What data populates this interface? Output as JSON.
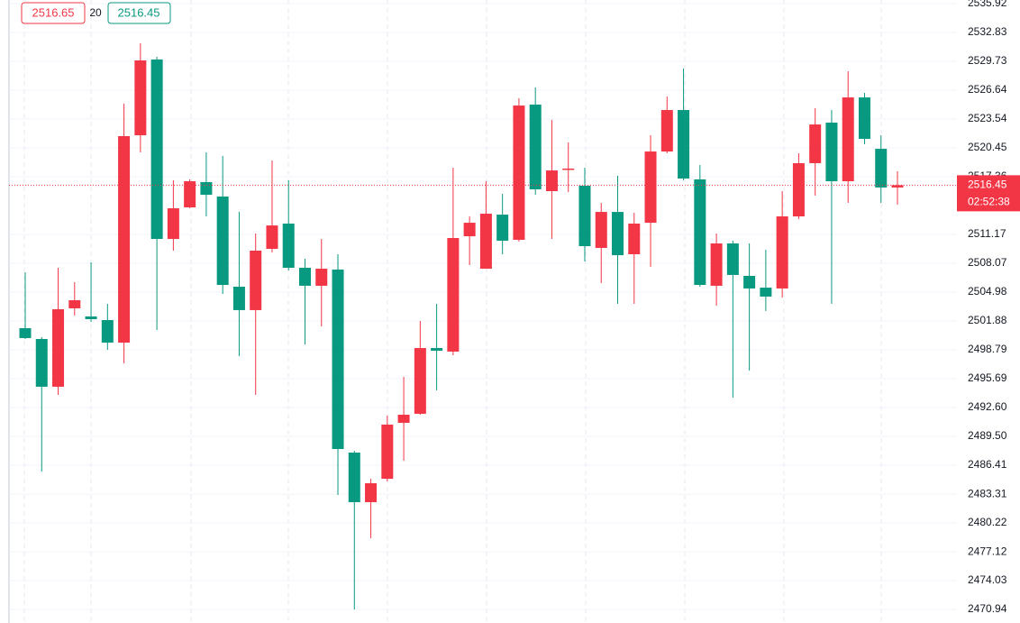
{
  "header": {
    "sell": 2516.65,
    "spread": 20,
    "buy": 2516.45
  },
  "chart_data": {
    "type": "candlestick",
    "up_color": "#f23645",
    "down_color": "#089981",
    "grid": true,
    "countdown": "02:52:38",
    "open": [
      2501.11,
      2499.95,
      2494.83,
      2503.24,
      2502.37,
      2501.98,
      2499.56,
      2521.8,
      2529.93,
      2510.68,
      2514.07,
      2516.78,
      2515.23,
      2505.56,
      2503.05,
      2509.62,
      2512.33,
      2507.59,
      2505.66,
      2507.4,
      2487.77,
      2482.45,
      2484.96,
      2490.96,
      2491.93,
      2498.98,
      2498.6,
      2510.97,
      2507.49,
      2513.29,
      2510.59,
      2525.09,
      2515.81,
      2518.13,
      2516.39,
      2509.72,
      2513.58,
      2509.04,
      2512.42,
      2520.06,
      2524.51,
      2517.07,
      2505.66,
      2510.2,
      2506.72,
      2505.46,
      2505.37,
      2513.1,
      2518.81,
      2523.16,
      2516.87,
      2525.86,
      2520.35,
      2516.2
    ],
    "high": [
      2507.11,
      2500.14,
      2507.59,
      2506.04,
      2508.17,
      2503.72,
      2525.19,
      2531.67,
      2530.22,
      2516.97,
      2517.07,
      2519.97,
      2519.58,
      2513.58,
      2511.26,
      2519.1,
      2516.97,
      2508.56,
      2510.68,
      2509.04,
      2487.96,
      2484.96,
      2491.73,
      2495.89,
      2501.88,
      2503.72,
      2518.32,
      2513.1,
      2516.87,
      2515.52,
      2525.77,
      2526.93,
      2523.45,
      2521.03,
      2518.32,
      2514.55,
      2517.45,
      2513.49,
      2521.8,
      2525.96,
      2528.96,
      2518.61,
      2511.26,
      2510.49,
      2510.2,
      2509.52,
      2515.81,
      2519.87,
      2524.7,
      2524.51,
      2528.67,
      2526.35,
      2521.8,
      2517.94
    ],
    "low": [
      2499.95,
      2485.74,
      2493.95,
      2502.46,
      2501.79,
      2498.79,
      2497.34,
      2519.97,
      2500.92,
      2509.43,
      2513.97,
      2513.1,
      2504.79,
      2498.11,
      2493.95,
      2509.23,
      2507.3,
      2499.37,
      2501.3,
      2483.22,
      2470.94,
      2478.58,
      2484.67,
      2486.9,
      2491.83,
      2494.44,
      2498.21,
      2507.88,
      2507.49,
      2509.04,
      2510.39,
      2515.42,
      2510.68,
      2515.71,
      2508.27,
      2505.95,
      2503.72,
      2503.72,
      2507.69,
      2519.87,
      2516.97,
      2505.56,
      2503.53,
      2493.67,
      2496.57,
      2502.95,
      2504.4,
      2512.81,
      2515.33,
      2503.72,
      2514.55,
      2520.84,
      2514.55,
      2514.36
    ],
    "close": [
      2500.05,
      2494.83,
      2503.14,
      2504.11,
      2502.08,
      2499.56,
      2521.71,
      2529.83,
      2510.68,
      2513.97,
      2516.87,
      2515.42,
      2505.75,
      2503.05,
      2509.43,
      2512.13,
      2507.59,
      2505.66,
      2507.49,
      2488.15,
      2482.45,
      2484.48,
      2490.77,
      2491.83,
      2498.98,
      2498.69,
      2510.78,
      2512.42,
      2513.39,
      2510.49,
      2524.99,
      2516.0,
      2518.03,
      2518.23,
      2509.91,
      2513.58,
      2508.94,
      2512.33,
      2520.06,
      2524.51,
      2517.16,
      2505.75,
      2510.2,
      2506.82,
      2505.37,
      2504.5,
      2513.1,
      2518.81,
      2522.96,
      2516.87,
      2525.86,
      2521.42,
      2516.2,
      2516.45
    ],
    "ylim": [
      2469.49,
      2536.31
    ],
    "yticks": [
      2470.94,
      2474.03,
      2477.12,
      2480.22,
      2483.31,
      2486.41,
      {
        "value": 2489.5,
        "label": "2489.50"
      },
      {
        "value": 2492.6,
        "label": "2492.60"
      },
      2495.69,
      2498.79,
      2501.88,
      2504.98,
      2508.07,
      2511.17,
      2517.36,
      2520.45,
      2523.54,
      2526.64,
      2529.73,
      2532.83,
      2535.92
    ]
  }
}
